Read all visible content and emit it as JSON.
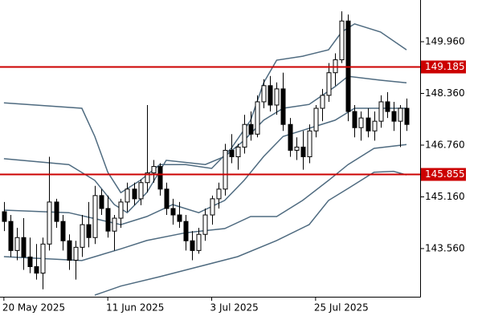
{
  "chart_data": {
    "type": "candlestick",
    "xlim": [
      -0.6,
      64.1
    ],
    "ylim": [
      142.07,
      151.25
    ],
    "xticks": [
      {
        "value": 0,
        "label": "20 May 2025"
      },
      {
        "value": 16,
        "label": "11 Jun 2025"
      },
      {
        "value": 32,
        "label": "3 Jul 2025"
      },
      {
        "value": 48,
        "label": "25 Jul 2025"
      }
    ],
    "yticks": [
      {
        "value": 143.56,
        "label": "143.560"
      },
      {
        "value": 145.16,
        "label": "145.160"
      },
      {
        "value": 146.76,
        "label": "146.760"
      },
      {
        "value": 148.36,
        "label": "148.360"
      },
      {
        "value": 149.96,
        "label": "149.960"
      }
    ],
    "up_color": "#ffffff",
    "down_color": "#000000",
    "ohlc": {
      "open": [
        144.7,
        144.4,
        143.5,
        143.9,
        143.3,
        143.0,
        142.8,
        143.7,
        145.0,
        144.4,
        143.8,
        143.2,
        143.6,
        144.3,
        143.9,
        145.2,
        144.8,
        144.1,
        144.5,
        145.0,
        145.4,
        145.1,
        145.6,
        145.9,
        146.1,
        145.4,
        144.8,
        144.6,
        144.4,
        143.8,
        143.5,
        144.0,
        144.6,
        145.1,
        145.4,
        146.6,
        146.4,
        146.7,
        147.4,
        147.1,
        148.1,
        148.6,
        148.0,
        148.5,
        147.4,
        146.6,
        146.7,
        146.4,
        147.2,
        147.9,
        148.3,
        149.0,
        149.4,
        150.6,
        147.8,
        147.3,
        147.6,
        147.2,
        147.5,
        148.1,
        147.8,
        147.5,
        147.9
      ],
      "high": [
        145.0,
        144.6,
        144.2,
        144.5,
        143.9,
        143.7,
        143.9,
        146.4,
        145.1,
        144.6,
        144.0,
        143.8,
        144.6,
        145.0,
        145.5,
        145.4,
        145.2,
        144.6,
        145.1,
        145.6,
        145.6,
        145.7,
        148.0,
        146.3,
        146.2,
        145.6,
        145.1,
        145.0,
        144.6,
        144.1,
        144.2,
        144.8,
        145.2,
        145.6,
        146.8,
        147.1,
        146.8,
        147.7,
        147.8,
        148.3,
        148.8,
        148.9,
        148.7,
        149.0,
        147.6,
        147.0,
        147.2,
        147.4,
        148.0,
        148.5,
        149.3,
        149.6,
        150.9,
        150.8,
        148.0,
        147.8,
        147.9,
        147.8,
        148.3,
        148.4,
        148.1,
        148.0,
        148.2
      ],
      "low": [
        144.1,
        143.3,
        143.2,
        142.9,
        142.8,
        142.6,
        142.3,
        143.5,
        144.2,
        143.5,
        142.9,
        142.6,
        143.3,
        143.6,
        143.7,
        144.6,
        143.9,
        143.5,
        144.2,
        144.7,
        144.9,
        144.9,
        145.3,
        145.6,
        145.2,
        144.6,
        144.3,
        144.2,
        143.5,
        143.2,
        143.4,
        143.8,
        144.3,
        144.8,
        145.2,
        146.2,
        146.0,
        146.5,
        146.9,
        147.0,
        147.9,
        147.8,
        147.7,
        147.2,
        146.4,
        146.3,
        146.0,
        146.2,
        147.0,
        147.5,
        148.1,
        148.6,
        149.3,
        147.5,
        147.0,
        146.9,
        147.0,
        146.9,
        147.3,
        147.6,
        147.2,
        146.7,
        147.2
      ],
      "close": [
        144.4,
        143.5,
        143.9,
        143.3,
        143.0,
        142.8,
        143.7,
        145.0,
        144.4,
        143.8,
        143.2,
        143.6,
        144.3,
        143.9,
        145.2,
        144.8,
        144.1,
        144.5,
        145.0,
        145.4,
        145.1,
        145.6,
        145.9,
        146.1,
        145.4,
        144.8,
        144.6,
        144.4,
        143.8,
        143.5,
        144.0,
        144.6,
        145.1,
        145.4,
        146.6,
        146.4,
        146.7,
        147.4,
        147.1,
        148.1,
        148.6,
        148.0,
        148.5,
        147.4,
        146.6,
        146.7,
        146.4,
        147.2,
        147.9,
        148.3,
        149.0,
        149.4,
        150.6,
        147.8,
        147.3,
        147.6,
        147.2,
        147.5,
        148.1,
        147.8,
        147.5,
        147.9,
        147.4
      ]
    },
    "bands": [
      {
        "color": "#4f6b80",
        "x": [
          0,
          12,
          14,
          16,
          18,
          21,
          24,
          28,
          32,
          35,
          38,
          40,
          42,
          46,
          50,
          52,
          54,
          58,
          62
        ],
        "values": [
          148.07,
          147.9,
          147.03,
          145.92,
          145.29,
          145.67,
          146.16,
          146.16,
          146.04,
          146.66,
          147.53,
          148.69,
          149.39,
          149.51,
          149.71,
          150.26,
          150.51,
          150.26,
          149.71
        ]
      },
      {
        "color": "#4f6b80",
        "x": [
          0,
          10,
          14,
          17,
          19,
          22,
          25,
          31,
          34,
          37,
          40,
          43,
          47,
          51,
          53,
          58,
          62
        ],
        "values": [
          146.34,
          146.16,
          145.67,
          144.92,
          144.67,
          145.29,
          146.29,
          146.16,
          146.41,
          146.91,
          147.53,
          147.9,
          148.02,
          148.57,
          148.89,
          148.77,
          148.69
        ]
      },
      {
        "color": "#4f6b80",
        "x": [
          0,
          10,
          18,
          22,
          26,
          30,
          34,
          37,
          40,
          43,
          47,
          51,
          54,
          62
        ],
        "values": [
          144.75,
          144.67,
          144.3,
          144.55,
          144.92,
          144.67,
          145.05,
          145.67,
          146.41,
          147.03,
          147.28,
          147.53,
          147.9,
          147.9
        ]
      },
      {
        "color": "#4f6b80",
        "x": [
          0,
          12,
          18,
          22,
          28,
          34,
          38,
          42,
          46,
          50,
          53,
          57,
          62
        ],
        "values": [
          143.31,
          143.19,
          143.55,
          143.81,
          144.05,
          144.18,
          144.55,
          144.55,
          145.05,
          145.67,
          146.16,
          146.66,
          146.78
        ]
      },
      {
        "color": "#4f6b80",
        "x": [
          14,
          18,
          24,
          30,
          36,
          42,
          47,
          50,
          53,
          57,
          60,
          62
        ],
        "values": [
          142.12,
          142.4,
          142.69,
          143.0,
          143.31,
          143.81,
          144.3,
          145.05,
          145.42,
          145.92,
          145.95,
          145.84
        ]
      }
    ],
    "hlines": [
      {
        "value": 149.185,
        "label": "149.185",
        "color": "#cc0000"
      },
      {
        "value": 145.855,
        "label": "145.855",
        "color": "#cc0000"
      }
    ]
  }
}
